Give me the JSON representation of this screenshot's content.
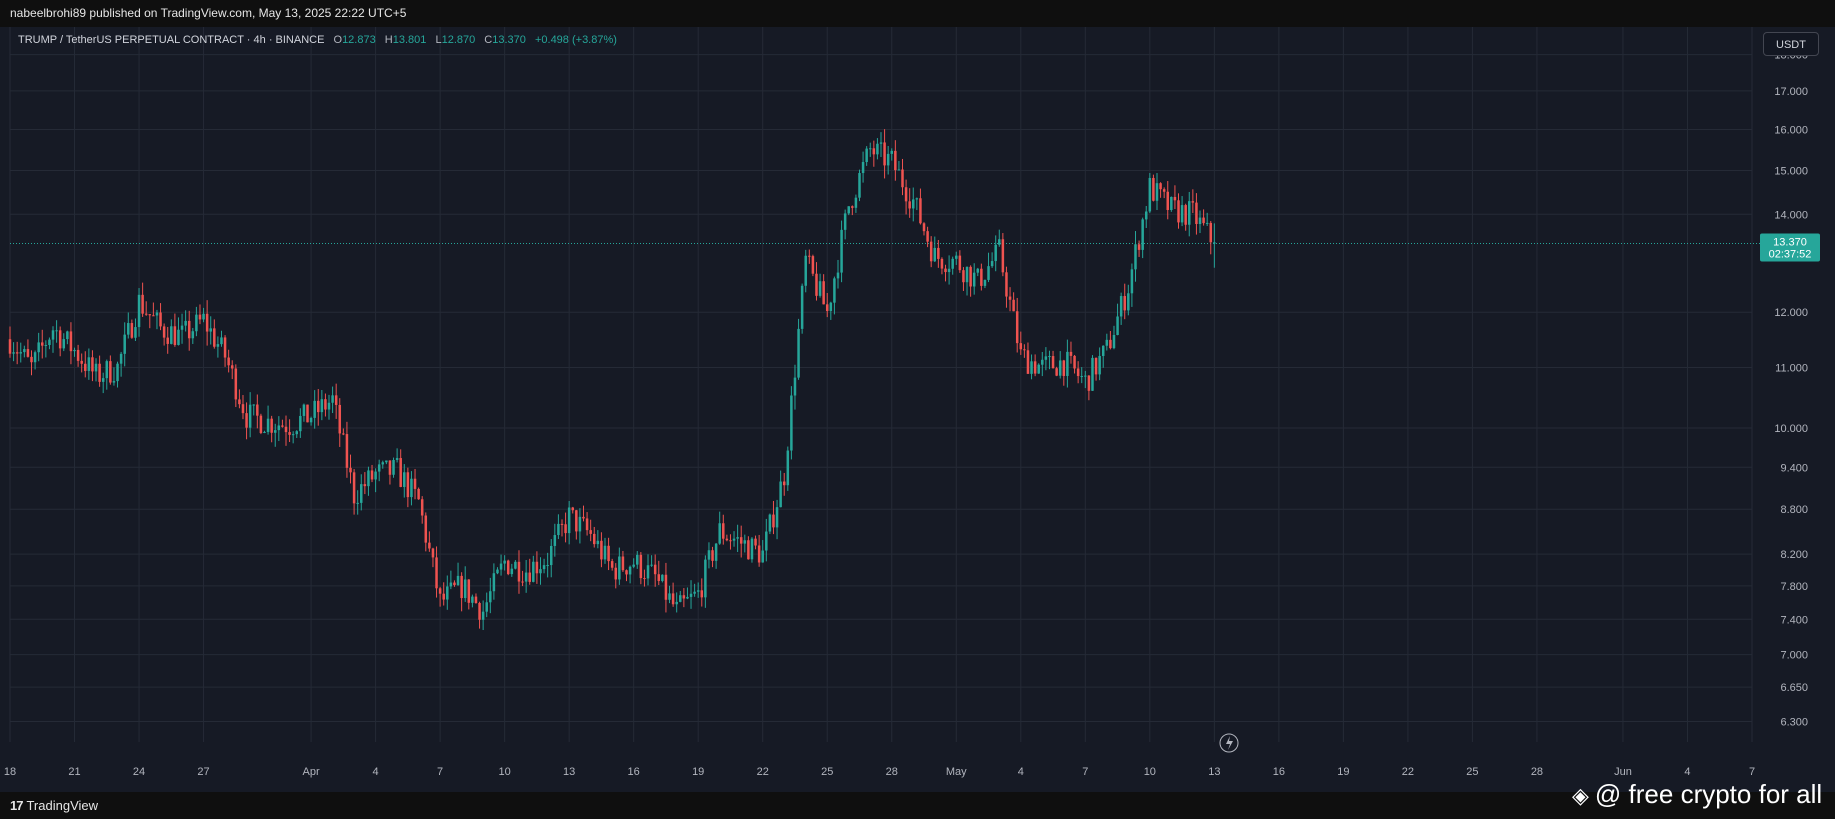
{
  "header": {
    "published_text": "nabeelbrohi89 published on TradingView.com, May 13, 2025 22:22 UTC+5"
  },
  "legend": {
    "symbol_text": "TRUMP / TetherUS PERPETUAL CONTRACT · 4h · BINANCE",
    "open_label": "O",
    "open_value": "12.873",
    "high_label": "H",
    "high_value": "13.801",
    "low_label": "L",
    "low_value": "12.870",
    "close_label": "C",
    "close_value": "13.370",
    "change_text": "+0.498 (+3.87%)"
  },
  "currency_button": "USDT",
  "price_tag": {
    "price": "13.370",
    "countdown": "02:37:52"
  },
  "footer": {
    "brand_logo": "17",
    "brand_name": "TradingView"
  },
  "watermark": {
    "binance_icon": "binance-icon",
    "text": "@ free crypto for all"
  },
  "colors": {
    "up": "#26a69a",
    "down": "#ef5350",
    "background": "#161a25",
    "grid": "#252a36"
  },
  "chart_data": {
    "type": "candlestick",
    "y_scale": "log",
    "ylim": [
      6.1,
      18.8
    ],
    "y_ticks": [
      "18.000",
      "17.000",
      "16.000",
      "15.000",
      "14.000",
      "12.000",
      "11.000",
      "10.000",
      "9.400",
      "8.800",
      "8.200",
      "7.800",
      "7.400",
      "7.000",
      "6.650",
      "6.300"
    ],
    "x_ticks": [
      "18",
      "21",
      "24",
      "27",
      "Apr",
      "4",
      "7",
      "10",
      "13",
      "16",
      "19",
      "22",
      "25",
      "28",
      "May",
      "4",
      "7",
      "10",
      "13",
      "16",
      "19",
      "22",
      "25",
      "28",
      "Jun",
      "4",
      "7"
    ],
    "x_start": "2025-03-18",
    "x_end": "2025-06-07",
    "last_price": 13.37,
    "series": [
      {
        "name": "",
        "points": [
          [
            "2025-03-18",
            11.5
          ],
          [
            "2025-03-19",
            11.0
          ],
          [
            "2025-03-20",
            11.7
          ],
          [
            "2025-03-21",
            11.3
          ],
          [
            "2025-03-22",
            10.85
          ],
          [
            "2025-03-23",
            11.0
          ],
          [
            "2025-03-24",
            12.2
          ],
          [
            "2025-03-25",
            11.7
          ],
          [
            "2025-03-26",
            11.55
          ],
          [
            "2025-03-27",
            11.85
          ],
          [
            "2025-03-28",
            11.2
          ],
          [
            "2025-03-29",
            10.2
          ],
          [
            "2025-03-30",
            10.1
          ],
          [
            "2025-03-31",
            10.05
          ],
          [
            "2025-04-01",
            10.2
          ],
          [
            "2025-04-02",
            10.45
          ],
          [
            "2025-04-03",
            9.0
          ],
          [
            "2025-04-04",
            9.3
          ],
          [
            "2025-04-05",
            9.35
          ],
          [
            "2025-04-06",
            8.9
          ],
          [
            "2025-04-07",
            7.6
          ],
          [
            "2025-04-08",
            7.8
          ],
          [
            "2025-04-09",
            7.5
          ],
          [
            "2025-04-10",
            8.1
          ],
          [
            "2025-04-11",
            8.0
          ],
          [
            "2025-04-12",
            8.15
          ],
          [
            "2025-04-13",
            8.7
          ],
          [
            "2025-04-14",
            8.45
          ],
          [
            "2025-04-15",
            8.0
          ],
          [
            "2025-04-16",
            8.1
          ],
          [
            "2025-04-17",
            7.9
          ],
          [
            "2025-04-18",
            7.5
          ],
          [
            "2025-04-19",
            7.7
          ],
          [
            "2025-04-20",
            8.5
          ],
          [
            "2025-04-21",
            8.35
          ],
          [
            "2025-04-22",
            8.2
          ],
          [
            "2025-04-23",
            9.3
          ],
          [
            "2025-04-24",
            13.0
          ],
          [
            "2025-04-25",
            12.0
          ],
          [
            "2025-04-26",
            14.2
          ],
          [
            "2025-04-27",
            15.5
          ],
          [
            "2025-04-28",
            15.2
          ],
          [
            "2025-04-29",
            14.3
          ],
          [
            "2025-04-30",
            13.1
          ],
          [
            "2025-05-01",
            13.0
          ],
          [
            "2025-05-02",
            12.6
          ],
          [
            "2025-05-03",
            13.2
          ],
          [
            "2025-05-04",
            11.2
          ],
          [
            "2025-05-05",
            11.0
          ],
          [
            "2025-05-06",
            11.1
          ],
          [
            "2025-05-07",
            10.75
          ],
          [
            "2025-05-08",
            11.3
          ],
          [
            "2025-05-09",
            12.5
          ],
          [
            "2025-05-10",
            14.6
          ],
          [
            "2025-05-11",
            14.1
          ],
          [
            "2025-05-12",
            14.0
          ],
          [
            "2025-05-13",
            13.37
          ]
        ]
      }
    ]
  }
}
